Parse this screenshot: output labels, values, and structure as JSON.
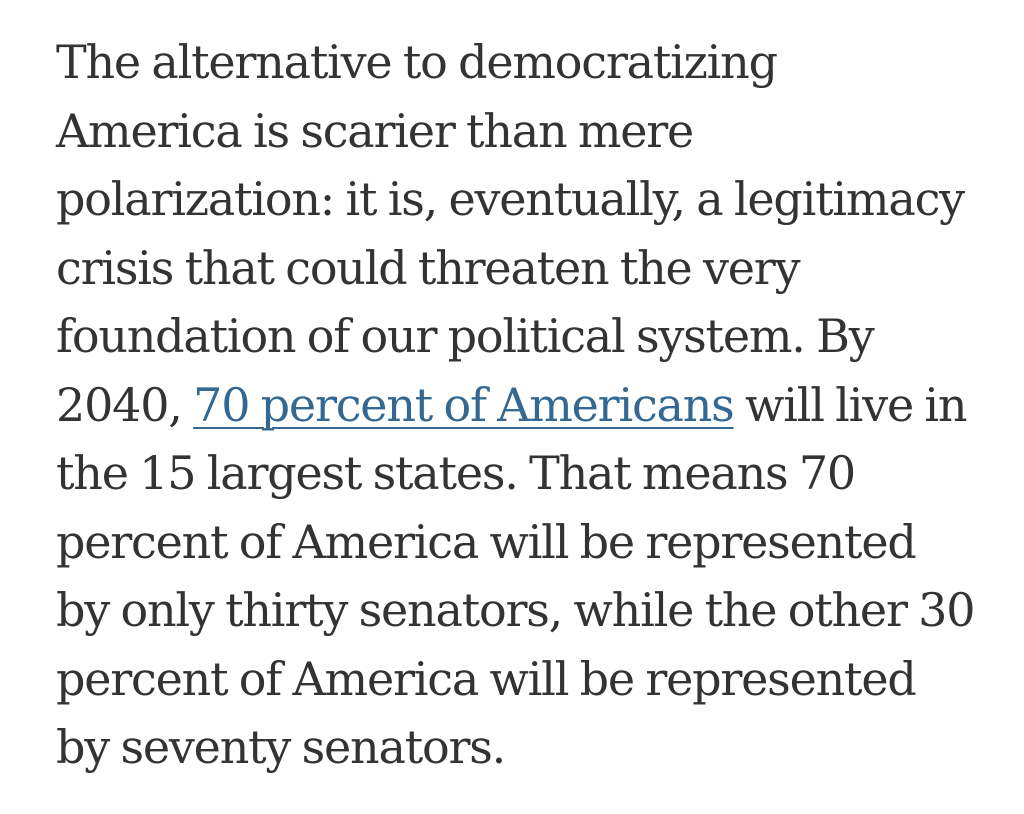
{
  "paragraph": {
    "lines": [
      "The alternative to democratizing",
      "America is scarier than mere",
      "polarization: it is, eventually, a legitimacy",
      "crisis that could threaten the very",
      "foundation of our political system. By",
      "the 15 largest states. That means 70",
      "percent of America will be represented",
      "by only thirty senators, while the other 30",
      "percent of America will be represented",
      "by seventy senators."
    ],
    "link_line": {
      "before": "2040, ",
      "link_text": "70 percent of Americans",
      "after": " will live in"
    }
  },
  "colors": {
    "text": "#333333",
    "link": "#326891",
    "background": "#ffffff"
  }
}
